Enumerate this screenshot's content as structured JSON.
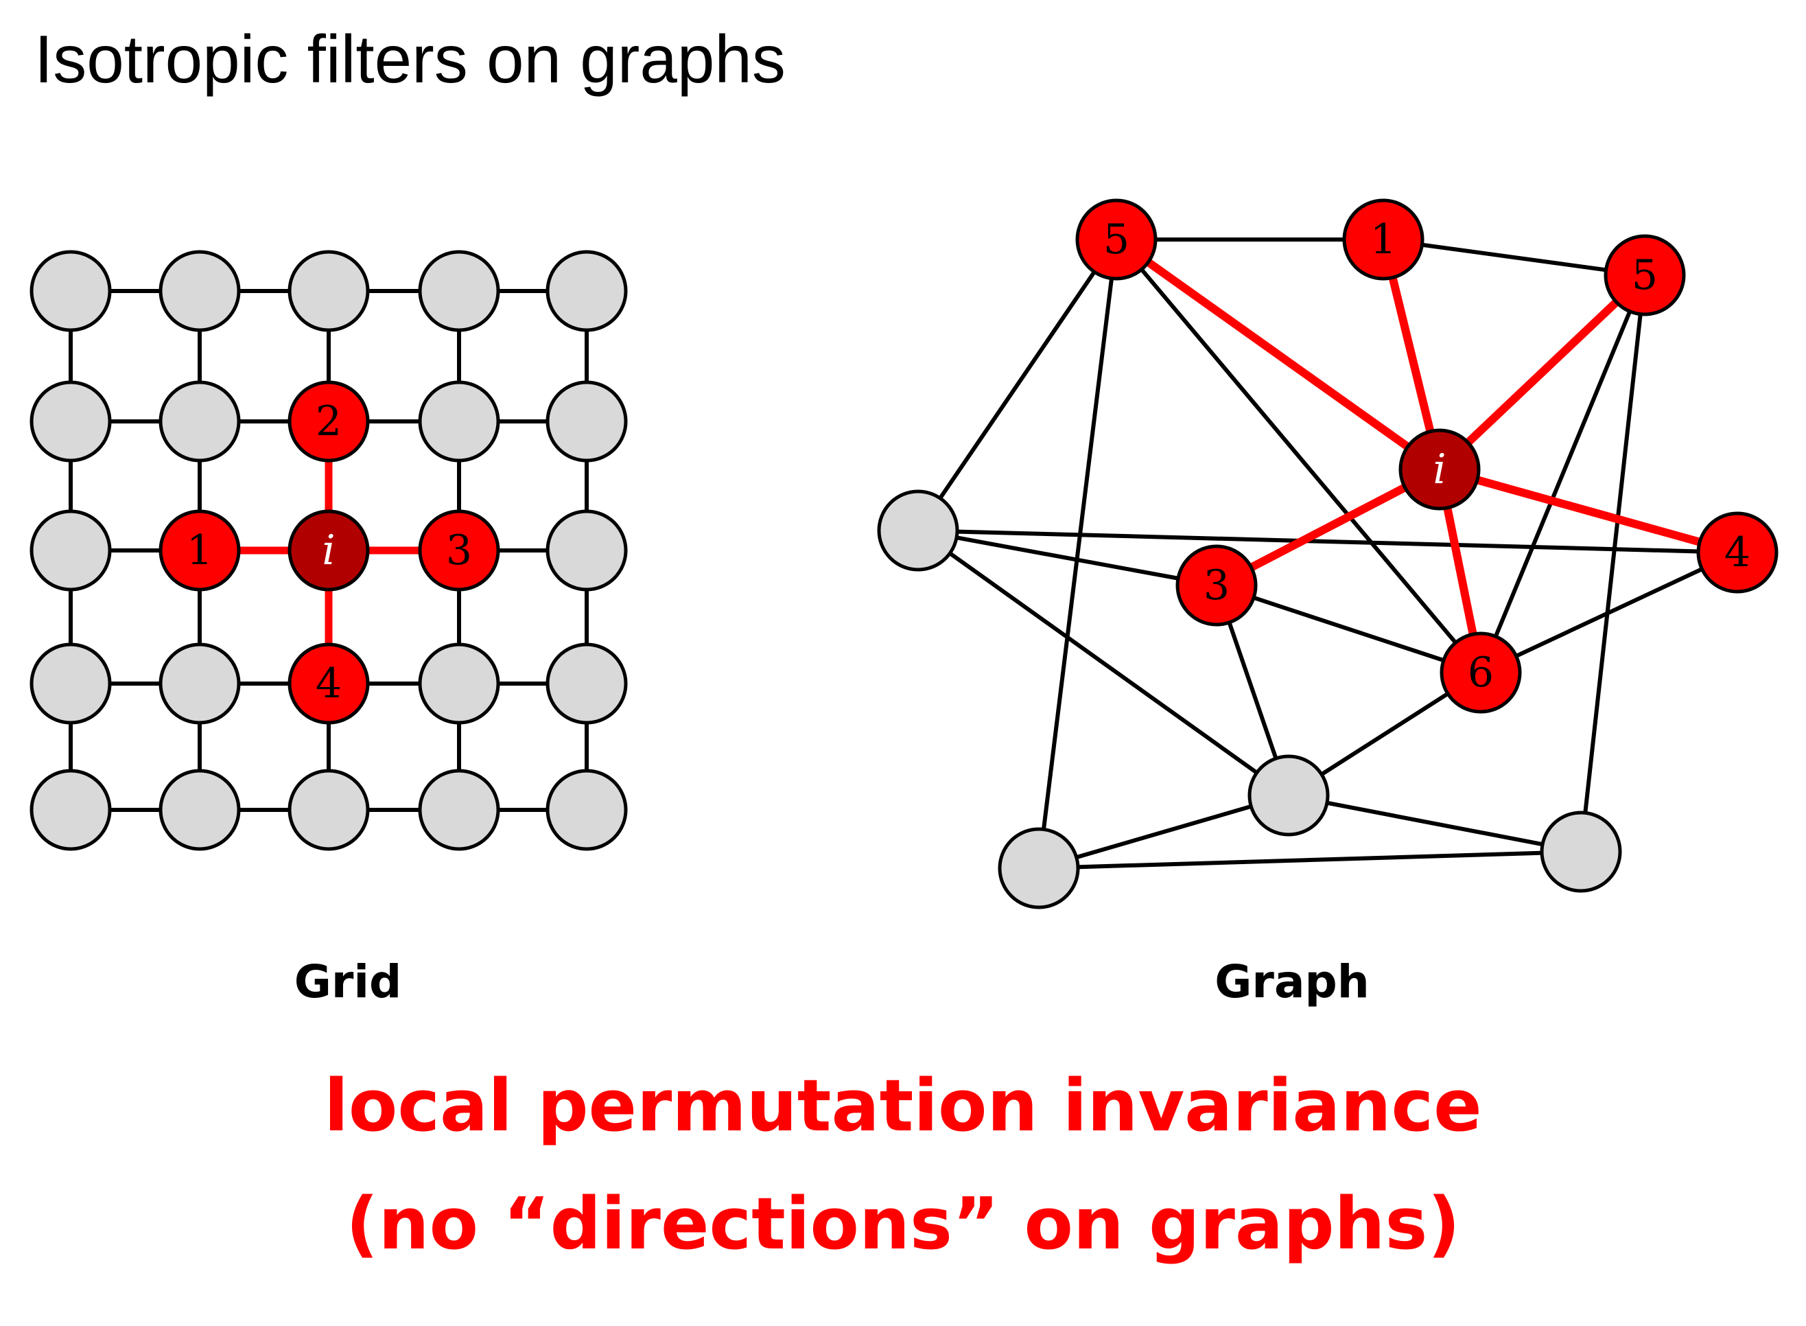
{
  "slide": {
    "title": "Isotropic filters on graphs",
    "grid_caption": "Grid",
    "graph_caption": "Graph",
    "conclusion_line1": "local permutation invariance",
    "conclusion_line2": "(no “directions” on graphs)"
  },
  "colors": {
    "accent_red": "#ff0000",
    "center_node": "#b10000",
    "gray_node": "#d9d9da",
    "edge_black": "#000000",
    "center_label": "#ffffff"
  },
  "grid": {
    "rows": 5,
    "cols": 5,
    "center_label": "i",
    "neighbors": [
      {
        "label": "1",
        "direction": "left"
      },
      {
        "label": "2",
        "direction": "up"
      },
      {
        "label": "3",
        "direction": "right"
      },
      {
        "label": "4",
        "direction": "down"
      }
    ]
  },
  "graph": {
    "nodes": [
      {
        "id": "n5a",
        "label": "5",
        "kind": "neighbor"
      },
      {
        "id": "n1",
        "label": "1",
        "kind": "neighbor"
      },
      {
        "id": "n5b",
        "label": "5",
        "kind": "neighbor"
      },
      {
        "id": "ni",
        "label": "i",
        "kind": "center"
      },
      {
        "id": "n4",
        "label": "4",
        "kind": "neighbor"
      },
      {
        "id": "n3",
        "label": "3",
        "kind": "neighbor"
      },
      {
        "id": "n6",
        "label": "6",
        "kind": "neighbor"
      },
      {
        "id": "g1",
        "label": "",
        "kind": "other"
      },
      {
        "id": "g2",
        "label": "",
        "kind": "other"
      },
      {
        "id": "g3",
        "label": "",
        "kind": "other"
      },
      {
        "id": "g4",
        "label": "",
        "kind": "other"
      }
    ],
    "edges": [
      {
        "from": "n5a",
        "to": "n1",
        "kind": "plain"
      },
      {
        "from": "n1",
        "to": "n5b",
        "kind": "plain"
      },
      {
        "from": "n5a",
        "to": "g1",
        "kind": "plain"
      },
      {
        "from": "n5a",
        "to": "g2",
        "kind": "plain"
      },
      {
        "from": "n5a",
        "to": "n6",
        "kind": "plain"
      },
      {
        "from": "g1",
        "to": "n3",
        "kind": "plain"
      },
      {
        "from": "g1",
        "to": "n4",
        "kind": "plain"
      },
      {
        "from": "g1",
        "to": "g3",
        "kind": "plain"
      },
      {
        "from": "n3",
        "to": "n6",
        "kind": "plain"
      },
      {
        "from": "n3",
        "to": "g3",
        "kind": "plain"
      },
      {
        "from": "n4",
        "to": "n6",
        "kind": "plain"
      },
      {
        "from": "n5b",
        "to": "n6",
        "kind": "plain"
      },
      {
        "from": "n5b",
        "to": "g4",
        "kind": "plain"
      },
      {
        "from": "n6",
        "to": "g3",
        "kind": "plain"
      },
      {
        "from": "g3",
        "to": "g2",
        "kind": "plain"
      },
      {
        "from": "g3",
        "to": "g4",
        "kind": "plain"
      },
      {
        "from": "g2",
        "to": "g4",
        "kind": "plain"
      },
      {
        "from": "ni",
        "to": "n5a",
        "kind": "highlight"
      },
      {
        "from": "ni",
        "to": "n1",
        "kind": "highlight"
      },
      {
        "from": "ni",
        "to": "n5b",
        "kind": "highlight"
      },
      {
        "from": "ni",
        "to": "n4",
        "kind": "highlight"
      },
      {
        "from": "ni",
        "to": "n3",
        "kind": "highlight"
      },
      {
        "from": "ni",
        "to": "n6",
        "kind": "highlight"
      }
    ]
  }
}
